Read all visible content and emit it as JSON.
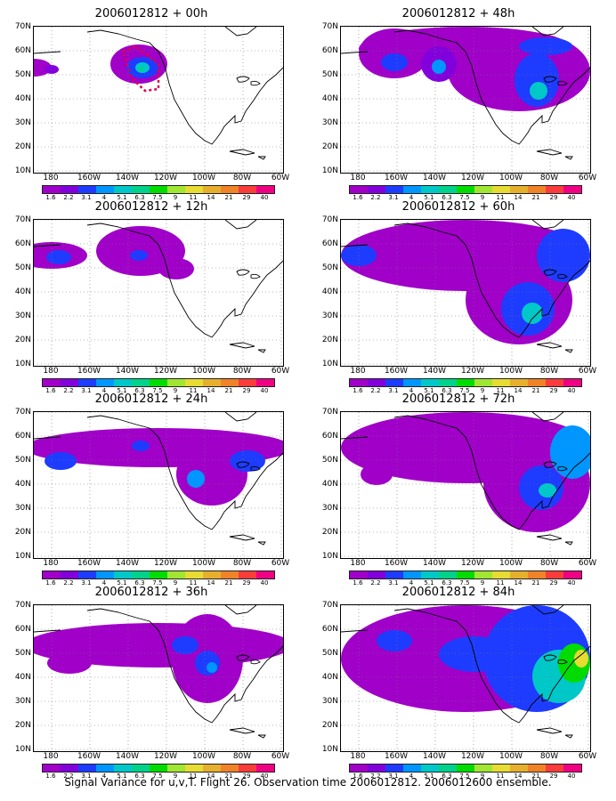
{
  "panels": [
    {
      "title": "2006012812 + 00h"
    },
    {
      "title": "2006012812 + 48h"
    },
    {
      "title": "2006012812 + 12h"
    },
    {
      "title": "2006012812 + 60h"
    },
    {
      "title": "2006012812 + 24h"
    },
    {
      "title": "2006012812 + 72h"
    },
    {
      "title": "2006012812 + 36h"
    },
    {
      "title": "2006012812 + 84h"
    }
  ],
  "lat_labels": [
    "70N",
    "60N",
    "50N",
    "40N",
    "30N",
    "20N",
    "10N"
  ],
  "lon_labels": [
    "180",
    "160W",
    "140W",
    "120W",
    "100W",
    "80W",
    "60W"
  ],
  "colorbar": {
    "colors": [
      "#a000c8",
      "#8200dc",
      "#1e3cff",
      "#0096ff",
      "#00c8c8",
      "#00d28c",
      "#00dc00",
      "#a0e632",
      "#e6dc32",
      "#e6af2d",
      "#f08228",
      "#fa3c3c",
      "#f00082"
    ],
    "labels": [
      "1.6",
      "2.2",
      "3.1",
      "4",
      "5.1",
      "6.3",
      "7.5",
      "9",
      "11",
      "14",
      "21",
      "29",
      "40"
    ]
  },
  "footer": "Signal Variance for u,v,T. Flight 26. Observation time 2006012812. 2006012600 ensemble."
}
